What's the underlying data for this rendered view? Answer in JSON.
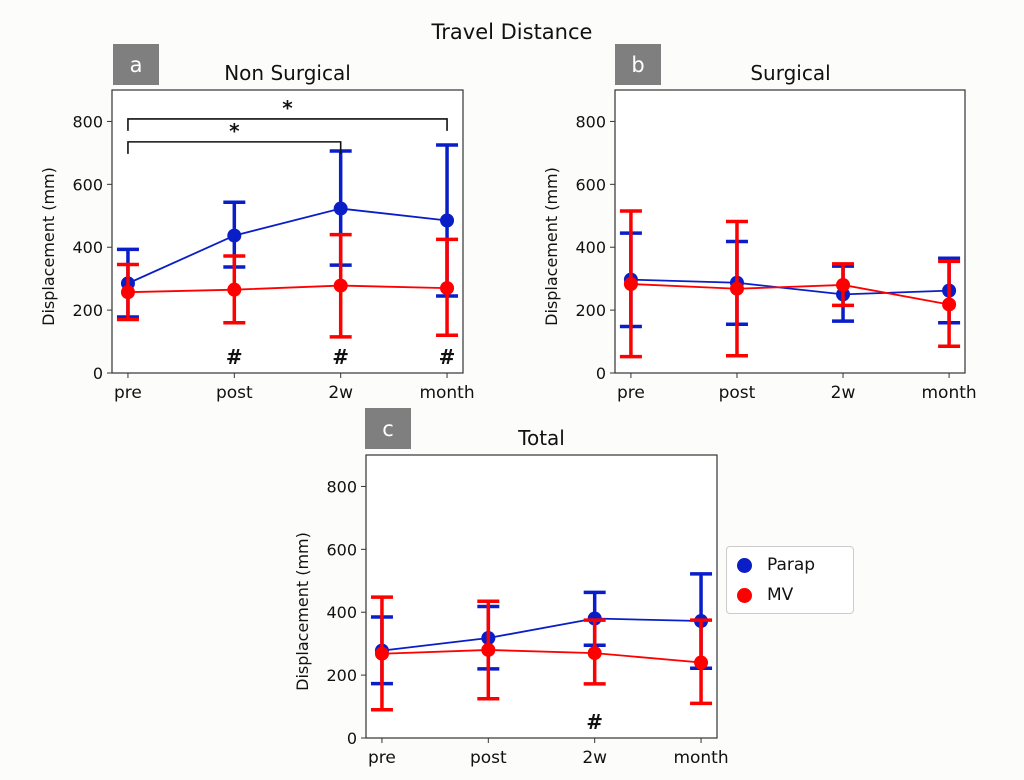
{
  "suptitle": "Travel Distance",
  "legend": {
    "placement": "right of panel c",
    "items": [
      {
        "name": "Parap",
        "color": "#0a1ec8"
      },
      {
        "name": "MV",
        "color": "#ff0000"
      }
    ]
  },
  "chart_data": [
    {
      "panel_label": "a",
      "title": "Non Surgical",
      "type": "line",
      "ylabel": "Displacement (mm)",
      "ylim": [
        0,
        900
      ],
      "yticks": [
        0,
        200,
        400,
        600,
        800
      ],
      "categories": [
        "pre",
        "post",
        "2w",
        "month"
      ],
      "series": [
        {
          "name": "Parap",
          "color": "#0a1ec8",
          "values": [
            285,
            437,
            523,
            485
          ],
          "lower": [
            178,
            337,
            343,
            245
          ],
          "upper": [
            393,
            543,
            706,
            725
          ]
        },
        {
          "name": "MV",
          "color": "#ff0000",
          "values": [
            257,
            265,
            278,
            270
          ],
          "lower": [
            170,
            160,
            115,
            120
          ],
          "upper": [
            345,
            372,
            440,
            425
          ]
        }
      ],
      "brackets": [
        {
          "from": "pre",
          "to": "2w",
          "y": 735,
          "label": "*"
        },
        {
          "from": "pre",
          "to": "month",
          "y": 808,
          "label": "*"
        }
      ],
      "markers": [
        {
          "at": "post",
          "label": "#"
        },
        {
          "at": "2w",
          "label": "#"
        },
        {
          "at": "month",
          "label": "#"
        }
      ]
    },
    {
      "panel_label": "b",
      "title": "Surgical",
      "type": "line",
      "ylabel": "Displacement (mm)",
      "ylim": [
        0,
        900
      ],
      "yticks": [
        0,
        200,
        400,
        600,
        800
      ],
      "categories": [
        "pre",
        "post",
        "2w",
        "month"
      ],
      "series": [
        {
          "name": "Parap",
          "color": "#0a1ec8",
          "values": [
            297,
            287,
            250,
            262
          ],
          "lower": [
            148,
            155,
            165,
            160
          ],
          "upper": [
            445,
            418,
            340,
            365
          ]
        },
        {
          "name": "MV",
          "color": "#ff0000",
          "values": [
            283,
            268,
            280,
            218
          ],
          "lower": [
            52,
            55,
            215,
            85
          ],
          "upper": [
            515,
            482,
            347,
            355
          ]
        }
      ],
      "brackets": [],
      "markers": []
    },
    {
      "panel_label": "c",
      "title": "Total",
      "type": "line",
      "ylabel": "Displacement (mm)",
      "ylim": [
        0,
        900
      ],
      "yticks": [
        0,
        200,
        400,
        600,
        800
      ],
      "categories": [
        "pre",
        "post",
        "2w",
        "month"
      ],
      "series": [
        {
          "name": "Parap",
          "color": "#0a1ec8",
          "values": [
            278,
            318,
            380,
            372
          ],
          "lower": [
            173,
            220,
            295,
            222
          ],
          "upper": [
            385,
            418,
            463,
            522
          ]
        },
        {
          "name": "MV",
          "color": "#ff0000",
          "values": [
            268,
            280,
            270,
            240
          ],
          "lower": [
            90,
            125,
            172,
            110
          ],
          "upper": [
            448,
            435,
            375,
            375
          ]
        }
      ],
      "brackets": [],
      "markers": [
        {
          "at": "2w",
          "label": "#"
        }
      ]
    }
  ]
}
